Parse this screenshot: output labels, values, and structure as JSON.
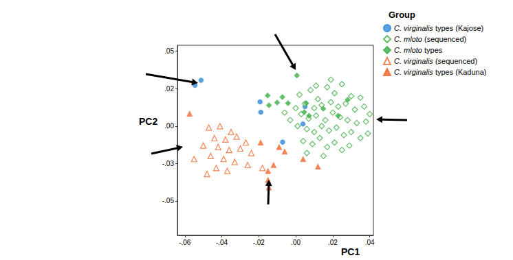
{
  "chart_data": {
    "type": "scatter",
    "x_label": "PC1",
    "y_label": "PC2",
    "legend_title": "Group",
    "legend": "right",
    "grid": false,
    "xlim": [
      -0.064,
      0.042
    ],
    "ylim": [
      -0.073,
      0.054
    ],
    "xticks": [
      {
        "value": -0.06,
        "label": "-.06"
      },
      {
        "value": -0.04,
        "label": "-.04"
      },
      {
        "value": -0.02,
        "label": "-.02"
      },
      {
        "value": 0,
        "label": ".00"
      },
      {
        "value": 0.02,
        "label": ".02"
      },
      {
        "value": 0.04,
        "label": ".04"
      }
    ],
    "yticks": [
      {
        "value": 0.05,
        "label": ".05"
      },
      {
        "value": 0.025,
        "label": ".02"
      },
      {
        "value": 0,
        "label": ".00"
      },
      {
        "value": -0.025,
        "label": "-.03"
      },
      {
        "value": -0.05,
        "label": "-.05"
      }
    ],
    "series": [
      {
        "name": "C. virginalis types (Kajose)",
        "color": "#2f8ad8",
        "marker": "circle",
        "values": [
          [
            -0.0512,
            0.0306
          ],
          [
            -0.0545,
            0.0273
          ],
          [
            -0.0193,
            0.0162
          ],
          [
            -0.0189,
            0.0093
          ],
          [
            0.005,
            0.013
          ],
          [
            0.0039,
            0.0014
          ],
          [
            -0.0071,
            -0.0107
          ]
        ]
      },
      {
        "name": "C. mloto (sequenced)",
        "color": "#3cae45",
        "marker": "open diamond",
        "values": [
          [
            0.002,
            0.021
          ],
          [
            0.008,
            0.024
          ],
          [
            0.012,
            0.018
          ],
          [
            0.017,
            0.026
          ],
          [
            0.021,
            0.022
          ],
          [
            0.025,
            0.028
          ],
          [
            0.03,
            0.02
          ],
          [
            0.035,
            0.019
          ],
          [
            0.005,
            0.015
          ],
          [
            0.01,
            0.012
          ],
          [
            0.014,
            0.014
          ],
          [
            0.019,
            0.016
          ],
          [
            0.023,
            0.013
          ],
          [
            0.027,
            0.015
          ],
          [
            0.032,
            0.011
          ],
          [
            0.037,
            0.013
          ],
          [
            0.04,
            0.008
          ],
          [
            0.003,
            0.008
          ],
          [
            0.007,
            0.005
          ],
          [
            0.011,
            0.007
          ],
          [
            0.016,
            0.004
          ],
          [
            0.02,
            0.009
          ],
          [
            0.024,
            0.006
          ],
          [
            0.028,
            0.004
          ],
          [
            0.033,
            0.002
          ],
          [
            0.038,
            0.003
          ],
          [
            -0.003,
            0.004
          ],
          [
            0.001,
            0.0
          ],
          [
            0.006,
            -0.002
          ],
          [
            0.01,
            -0.004
          ],
          [
            0.014,
            0.0
          ],
          [
            0.018,
            -0.003
          ],
          [
            0.022,
            -0.001
          ],
          [
            0.026,
            -0.006
          ],
          [
            0.03,
            -0.004
          ],
          [
            0.035,
            -0.008
          ],
          [
            0.039,
            -0.005
          ],
          [
            0.004,
            -0.01
          ],
          [
            0.009,
            -0.012
          ],
          [
            0.013,
            -0.008
          ],
          [
            0.017,
            -0.014
          ],
          [
            0.021,
            -0.011
          ],
          [
            0.025,
            -0.016
          ],
          [
            0.029,
            -0.013
          ],
          [
            0.015,
            -0.02
          ],
          [
            0.006,
            -0.018
          ],
          [
            -0.006,
            0.009
          ],
          [
            0.0,
            0.012
          ],
          [
            0.019,
            0.031
          ],
          [
            0.011,
            0.027
          ]
        ]
      },
      {
        "name": "C. mloto types",
        "color": "#3cae45",
        "marker": "diamond",
        "values": [
          [
            0.0006,
            0.0338
          ],
          [
            -0.0152,
            0.0204
          ],
          [
            -0.0145,
            0.0139
          ],
          [
            -0.0072,
            0.0194
          ],
          [
            -0.0101,
            0.0157
          ],
          [
            -0.0042,
            0.0153
          ],
          [
            0.0057,
            0.0153
          ],
          [
            0.0281,
            0.0176
          ],
          [
            0.0229,
            0.0069
          ],
          [
            0.0072,
            0.0069
          ],
          [
            0.0046,
            0.0093
          ],
          [
            0.0149,
            0.0116
          ]
        ]
      },
      {
        "name": "C. virginalis (sequenced)",
        "color": "#f0652a",
        "marker": "open triangle",
        "values": [
          [
            -0.047,
            -0.001
          ],
          [
            -0.041,
            0.0
          ],
          [
            -0.035,
            -0.004
          ],
          [
            -0.044,
            -0.008
          ],
          [
            -0.038,
            -0.009
          ],
          [
            -0.032,
            -0.007
          ],
          [
            -0.027,
            -0.011
          ],
          [
            -0.05,
            -0.013
          ],
          [
            -0.042,
            -0.014
          ],
          [
            -0.036,
            -0.016
          ],
          [
            -0.03,
            -0.015
          ],
          [
            -0.024,
            -0.018
          ],
          [
            -0.055,
            -0.022
          ],
          [
            -0.046,
            -0.02
          ],
          [
            -0.039,
            -0.022
          ],
          [
            -0.033,
            -0.024
          ],
          [
            -0.043,
            -0.028
          ],
          [
            -0.037,
            -0.03
          ],
          [
            -0.048,
            -0.032
          ],
          [
            -0.026,
            -0.026
          ],
          [
            -0.018,
            -0.028
          ]
        ]
      },
      {
        "name": "C. virginalis types (Kaduna)",
        "color": "#f0652a",
        "marker": "triangle",
        "values": [
          [
            -0.0574,
            0.0083
          ],
          [
            -0.019,
            -0.011
          ],
          [
            -0.009,
            -0.014
          ],
          [
            -0.006,
            -0.017
          ],
          [
            0.004,
            -0.022
          ],
          [
            -0.015,
            -0.03
          ],
          [
            -0.015,
            -0.036
          ],
          [
            -0.0145,
            -0.041
          ],
          [
            -0.012,
            -0.026
          ],
          [
            0.012,
            -0.027
          ]
        ]
      }
    ]
  }
}
